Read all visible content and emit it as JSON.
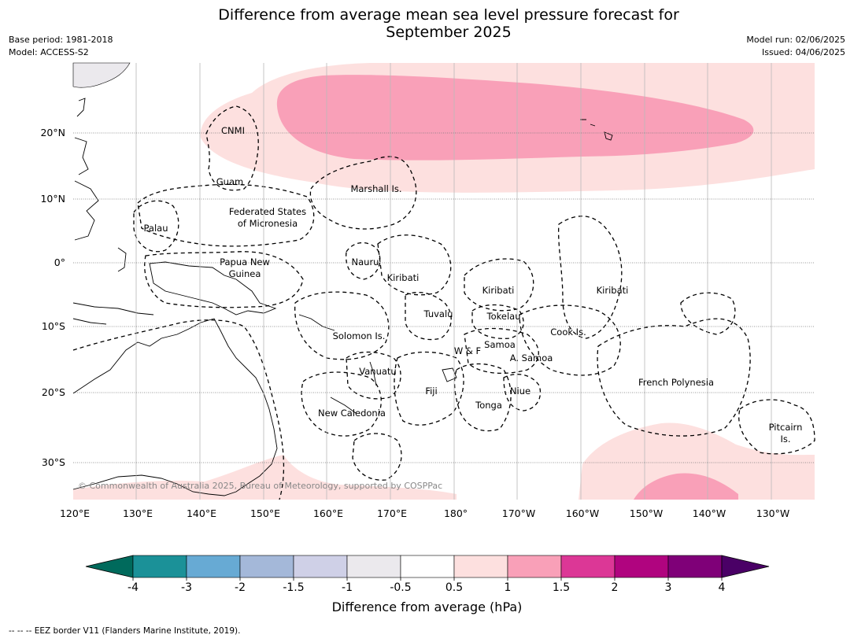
{
  "title": {
    "line1": "Difference from average mean sea level pressure forecast for",
    "line2": "September 2025"
  },
  "meta": {
    "base_period": "Base period: 1981-2018",
    "model": "Model: ACCESS-S2",
    "model_run": "Model run: 02/06/2025",
    "issued": "Issued: 04/06/2025"
  },
  "map": {
    "lon_ticks": [
      "120°E",
      "130°E",
      "140°E",
      "150°E",
      "160°E",
      "170°E",
      "180°",
      "170°W",
      "160°W",
      "150°W",
      "140°W",
      "130°W"
    ],
    "lat_ticks": [
      "20°N",
      "10°N",
      "0°",
      "10°S",
      "20°S",
      "30°S"
    ],
    "labels": [
      "CNMI",
      "Guam",
      "Marshall Is.",
      "Palau",
      "Federated States",
      "of Micronesia",
      "Papua New",
      "Guinea",
      "Nauru",
      "Kiribati",
      "Kiribati",
      "Kiribati",
      "Tuvalu",
      "Tokelau",
      "Cook Is.",
      "Solomon Is.",
      "W & F",
      "Samoa",
      "A. Samoa",
      "Vanuatu",
      "Fiji",
      "Niue",
      "Tonga",
      "French Polynesia",
      "New Caledonia",
      "Pitcairn",
      "Is."
    ],
    "copyright": "© Commonwealth of Australia 2025, Bureau of Meteorology, supported by COSPPac",
    "colors": {
      "light_pink": "#fde0df",
      "pink": "#f9a0b8",
      "dark_pink": "#f48fb1",
      "land": "#ebe9ed"
    }
  },
  "colorbar": {
    "title": "Difference from average (hPa)",
    "ticks": [
      "-4",
      "-3",
      "-2",
      "-1.5",
      "-1",
      "-0.5",
      "0.5",
      "1",
      "1.5",
      "2",
      "3",
      "4"
    ],
    "colors": [
      "#1b9198",
      "#67aad4",
      "#a4b8d9",
      "#cfd0e7",
      "#ebe9ed",
      "#ffffff",
      "#fde0df",
      "#f9a0b8",
      "#dc3796",
      "#b0047f",
      "#7f0078"
    ],
    "extend_low": "#006a5c",
    "extend_high": "#4a0066"
  },
  "footer": "--  --  -- EEZ border V11 (Flanders Marine Institute, 2019)."
}
